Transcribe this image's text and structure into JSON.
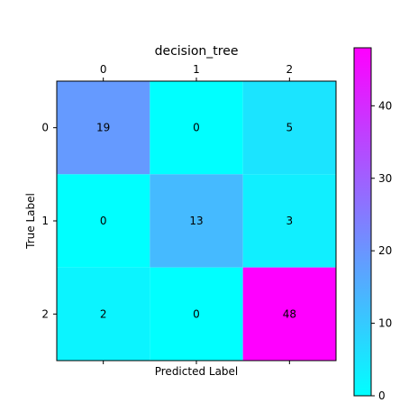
{
  "chart_data": {
    "type": "heatmap",
    "title": "decision_tree",
    "xlabel": "Predicted Label",
    "ylabel": "True Label",
    "x_ticks": [
      "0",
      "1",
      "2"
    ],
    "y_ticks": [
      "0",
      "1",
      "2"
    ],
    "matrix": [
      [
        19,
        0,
        5
      ],
      [
        0,
        13,
        3
      ],
      [
        2,
        0,
        48
      ]
    ],
    "colormap": "cool",
    "colormap_start": "#00ffff",
    "colormap_end": "#ff00ff",
    "color_range": [
      0,
      48
    ],
    "colorbar_ticks": [
      "0",
      "10",
      "20",
      "30",
      "40"
    ],
    "x_tick_position": "top",
    "grid": false,
    "legend": "none"
  }
}
